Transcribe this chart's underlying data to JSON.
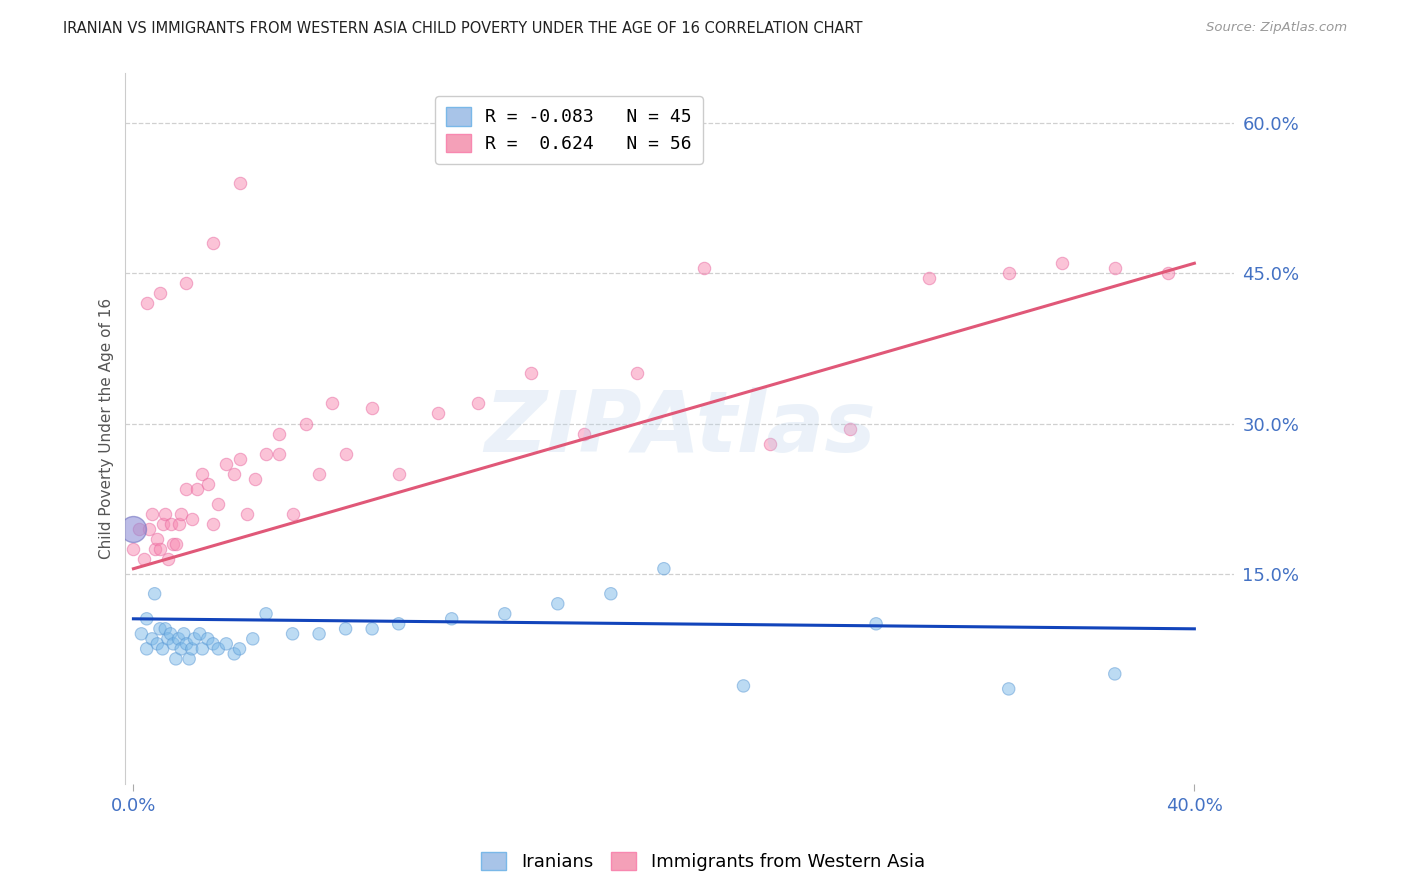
{
  "title": "IRANIAN VS IMMIGRANTS FROM WESTERN ASIA CHILD POVERTY UNDER THE AGE OF 16 CORRELATION CHART",
  "source": "Source: ZipAtlas.com",
  "ylabel": "Child Poverty Under the Age of 16",
  "ytick_values": [
    0.15,
    0.3,
    0.45,
    0.6
  ],
  "ytick_labels": [
    "15.0%",
    "30.0%",
    "45.0%",
    "60.0%"
  ],
  "xtick_values": [
    0.0,
    0.4
  ],
  "xtick_labels": [
    "0.0%",
    "40.0%"
  ],
  "xlim": [
    -0.003,
    0.415
  ],
  "ylim": [
    -0.06,
    0.65
  ],
  "series1_label": "Iranians",
  "series2_label": "Immigrants from Western Asia",
  "series1_color": "#7ab8e8",
  "series2_color": "#f888b0",
  "series1_edge": "#5a98d4",
  "series2_edge": "#e868a0",
  "trendline1_color": "#1244bb",
  "trendline2_color": "#e05878",
  "watermark": "ZIPAtlas",
  "background_color": "#ffffff",
  "title_color": "#222222",
  "ylabel_color": "#555555",
  "tick_color": "#4472c4",
  "grid_color": "#d0d0d0",
  "legend1_label": "R = -0.083   N = 45",
  "legend2_label": "R =  0.624   N = 56",
  "iran_x": [
    0.0,
    0.003,
    0.005,
    0.005,
    0.007,
    0.008,
    0.009,
    0.01,
    0.011,
    0.012,
    0.013,
    0.014,
    0.015,
    0.016,
    0.017,
    0.018,
    0.019,
    0.02,
    0.021,
    0.022,
    0.023,
    0.025,
    0.026,
    0.028,
    0.03,
    0.032,
    0.035,
    0.038,
    0.04,
    0.045,
    0.05,
    0.06,
    0.07,
    0.08,
    0.09,
    0.1,
    0.12,
    0.14,
    0.16,
    0.18,
    0.2,
    0.23,
    0.28,
    0.33,
    0.37
  ],
  "iran_y": [
    0.195,
    0.09,
    0.105,
    0.075,
    0.085,
    0.13,
    0.08,
    0.095,
    0.075,
    0.095,
    0.085,
    0.09,
    0.08,
    0.065,
    0.085,
    0.075,
    0.09,
    0.08,
    0.065,
    0.075,
    0.085,
    0.09,
    0.075,
    0.085,
    0.08,
    0.075,
    0.08,
    0.07,
    0.075,
    0.085,
    0.11,
    0.09,
    0.09,
    0.095,
    0.095,
    0.1,
    0.105,
    0.11,
    0.12,
    0.13,
    0.155,
    0.038,
    0.1,
    0.035,
    0.05
  ],
  "iran_sizes": [
    350,
    80,
    80,
    80,
    80,
    80,
    80,
    80,
    80,
    80,
    80,
    80,
    80,
    80,
    80,
    80,
    80,
    80,
    80,
    80,
    80,
    80,
    80,
    80,
    80,
    80,
    80,
    80,
    80,
    80,
    80,
    80,
    80,
    80,
    80,
    80,
    80,
    80,
    80,
    80,
    80,
    80,
    80,
    80,
    80
  ],
  "west_x": [
    0.0,
    0.002,
    0.004,
    0.006,
    0.007,
    0.008,
    0.009,
    0.01,
    0.011,
    0.012,
    0.013,
    0.014,
    0.015,
    0.016,
    0.017,
    0.018,
    0.02,
    0.022,
    0.024,
    0.026,
    0.028,
    0.03,
    0.032,
    0.035,
    0.038,
    0.04,
    0.043,
    0.046,
    0.05,
    0.055,
    0.06,
    0.065,
    0.07,
    0.08,
    0.09,
    0.1,
    0.115,
    0.13,
    0.15,
    0.17,
    0.19,
    0.215,
    0.24,
    0.27,
    0.3,
    0.33,
    0.35,
    0.37,
    0.39,
    0.005,
    0.01,
    0.02,
    0.03,
    0.04,
    0.055,
    0.075
  ],
  "west_y": [
    0.175,
    0.195,
    0.165,
    0.195,
    0.21,
    0.175,
    0.185,
    0.175,
    0.2,
    0.21,
    0.165,
    0.2,
    0.18,
    0.18,
    0.2,
    0.21,
    0.235,
    0.205,
    0.235,
    0.25,
    0.24,
    0.2,
    0.22,
    0.26,
    0.25,
    0.265,
    0.21,
    0.245,
    0.27,
    0.27,
    0.21,
    0.3,
    0.25,
    0.27,
    0.315,
    0.25,
    0.31,
    0.32,
    0.35,
    0.29,
    0.35,
    0.455,
    0.28,
    0.295,
    0.445,
    0.45,
    0.46,
    0.455,
    0.45,
    0.42,
    0.43,
    0.44,
    0.48,
    0.54,
    0.29,
    0.32
  ],
  "trendline1_x": [
    0.0,
    0.4
  ],
  "trendline1_y": [
    0.105,
    0.095
  ],
  "trendline2_x": [
    0.0,
    0.4
  ],
  "trendline2_y": [
    0.155,
    0.46
  ]
}
